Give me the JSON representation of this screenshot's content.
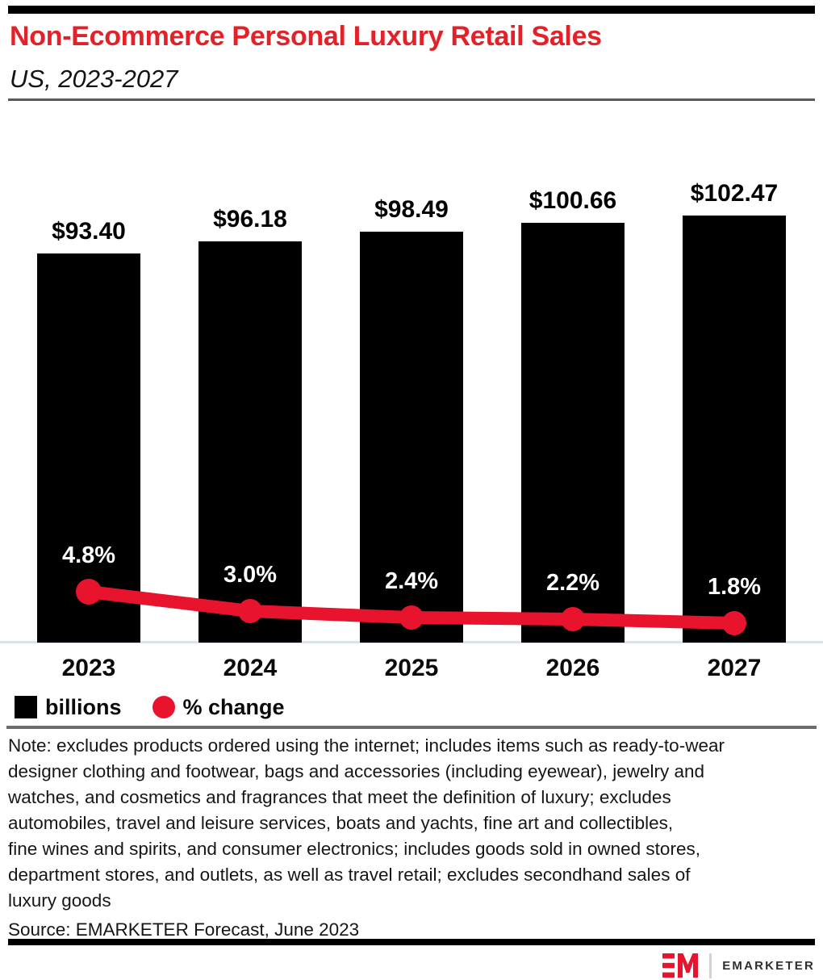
{
  "header": {
    "title": "Non-Ecommerce Personal Luxury Retail Sales",
    "subtitle": "US, 2023-2027"
  },
  "chart_data": {
    "type": "bar",
    "title": "Non-Ecommerce Personal Luxury Retail Sales",
    "subtitle": "US, 2023-2027",
    "categories": [
      "2023",
      "2024",
      "2025",
      "2026",
      "2027"
    ],
    "series": [
      {
        "name": "billions",
        "type": "bar",
        "values": [
          93.4,
          96.18,
          98.49,
          100.66,
          102.47
        ],
        "labels": [
          "$93.40",
          "$96.18",
          "$98.49",
          "$100.66",
          "$102.47"
        ],
        "color": "#000000"
      },
      {
        "name": "% change",
        "type": "line",
        "values": [
          4.8,
          3.0,
          2.4,
          2.2,
          1.8
        ],
        "labels": [
          "4.8%",
          "3.0%",
          "2.4%",
          "2.2%",
          "1.8%"
        ],
        "color": "#e8132d"
      }
    ],
    "xlabel": "",
    "ylabel": "",
    "grid": false,
    "legend_position": "bottom-left"
  },
  "legend": {
    "items": [
      {
        "label": "billions",
        "swatch": "square",
        "color": "#000000"
      },
      {
        "label": "% change",
        "swatch": "circle",
        "color": "#e8132d"
      }
    ]
  },
  "note": "Note: excludes products ordered using the internet; includes items such as ready-to-wear\ndesigner clothing and footwear, bags and accessories (including eyewear), jewelry and\nwatches, and cosmetics and fragrances that meet the definition of luxury; excludes\nautomobiles, travel and leisure services, boats and yachts, fine art and collectibles,\nfine wines and spirits, and consumer electronics; includes goods sold in owned stores,\ndepartment stores, and outlets, as well as travel retail; excludes secondhand sales of\nluxury goods",
  "source": "Source: EMARKETER Forecast, June 2023",
  "footer": {
    "brand": "EMARKETER"
  },
  "colors": {
    "title_red": "#e32128",
    "line_red": "#e8132d",
    "bar_black": "#000000",
    "axis_line": "#dde1ed",
    "divider_dark": "#595959",
    "divider_gray": "#6c6c6c"
  }
}
